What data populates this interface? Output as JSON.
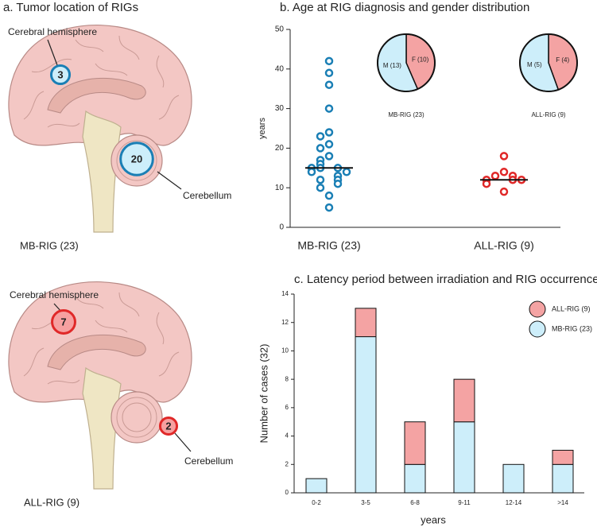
{
  "panel_a": {
    "title": "a. Tumor location of RIGs",
    "brains": [
      {
        "hemisphere_label": "Cerebral hemisphere",
        "hemisphere_count": 3,
        "cerebellum_label": "Cerebellum",
        "cerebellum_count": 20,
        "group": "MB-RIG (23)",
        "color": "#1a7fb5",
        "fill": "#cdeefa"
      },
      {
        "hemisphere_label": "Cerebral hemisphere",
        "hemisphere_count": 7,
        "cerebellum_label": "Cerebellum",
        "cerebellum_count": 2,
        "group": "ALL-RIG (9)",
        "color": "#e02828",
        "fill": "#f6a0a0"
      }
    ]
  },
  "chart_data": [
    {
      "type": "strip",
      "title": "b. Age at RIG diagnosis and gender distribution",
      "y_label": "years",
      "categories": [
        "MB-RIG (23)",
        "ALL-RIG (9)"
      ],
      "series": [
        {
          "color": "#1a7fb5",
          "values": [
            42,
            39,
            36,
            30,
            24,
            23,
            21,
            20,
            18,
            17,
            16,
            15,
            15,
            15,
            14,
            14,
            13,
            12,
            12,
            11,
            10,
            8,
            5
          ]
        },
        {
          "color": "#e02828",
          "values": [
            18,
            14,
            13,
            13,
            12,
            12,
            12,
            11,
            9
          ]
        }
      ],
      "medians": [
        15,
        12
      ],
      "ylim": [
        0,
        50
      ],
      "yticks": [
        0,
        10,
        20,
        30,
        40,
        50
      ]
    },
    {
      "type": "pie",
      "title": "MB-RIG (23)",
      "values": [
        13,
        10
      ],
      "value_labels": [
        "M (13)",
        "F (10)"
      ],
      "colors": [
        "#cdeefa",
        "#f4a3a3"
      ]
    },
    {
      "type": "pie",
      "title": "ALL-RIG (9)",
      "values": [
        5,
        4
      ],
      "value_labels": [
        "M (5)",
        "F (4)"
      ],
      "colors": [
        "#cdeefa",
        "#f4a3a3"
      ]
    },
    {
      "type": "stacked_bar",
      "title": "c. Latency period between irradiation and RIG occurrence",
      "x_label": "years",
      "y_label": "Number of cases (32)",
      "categories": [
        "0-2",
        "3-5",
        "6-8",
        "9-11",
        "12-14",
        ">14"
      ],
      "series": [
        {
          "name": "MB-RIG (23)",
          "color": "#cdeefa",
          "values": [
            1,
            11,
            2,
            5,
            2,
            2
          ]
        },
        {
          "name": "ALL-RIG (9)",
          "color": "#f4a3a3",
          "values": [
            0,
            2,
            3,
            3,
            0,
            1
          ]
        }
      ],
      "ylim": [
        0,
        14
      ],
      "yticks": [
        0,
        2,
        4,
        6,
        8,
        10,
        12,
        14
      ],
      "legend": "top-right"
    }
  ]
}
